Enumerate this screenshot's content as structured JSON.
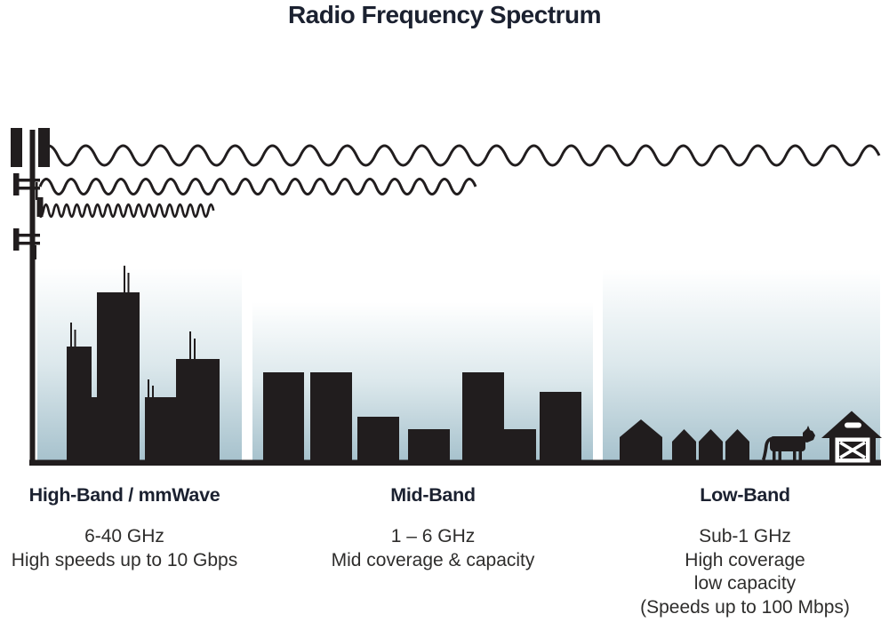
{
  "title": "Radio Frequency Spectrum",
  "colors": {
    "ink": "#211d1e",
    "title_text": "#1b2130",
    "body_text": "#2e2d2c",
    "sky_top": "#ffffff",
    "sky_mid": "#dce8ec",
    "sky_bottom": "#a7c2cd"
  },
  "bands": [
    {
      "name": "high-band",
      "heading": "High-Band / mmWave",
      "lines": [
        "6-40 GHz",
        "High speeds up to 10 Gbps"
      ],
      "scene": "skyscraper-skyline-with-cell-tower",
      "wave": "short-wavelength-high-frequency"
    },
    {
      "name": "mid-band",
      "heading": "Mid-Band",
      "lines": [
        "1 – 6 GHz",
        "Mid coverage & capacity"
      ],
      "scene": "mid-rise-buildings",
      "wave": "medium-wavelength-medium-frequency"
    },
    {
      "name": "low-band",
      "heading": "Low-Band",
      "lines": [
        "Sub-1 GHz",
        "High coverage",
        "low capacity",
        "(Speeds up to 100 Mbps)"
      ],
      "scene": "rural-houses-cow-and-barn",
      "wave": "long-wavelength-low-frequency"
    }
  ],
  "icons": [
    "cell-tower-icon",
    "radio-wave-icon",
    "skyscrapers-icon",
    "buildings-icon",
    "house-icon",
    "cow-icon",
    "barn-icon"
  ]
}
